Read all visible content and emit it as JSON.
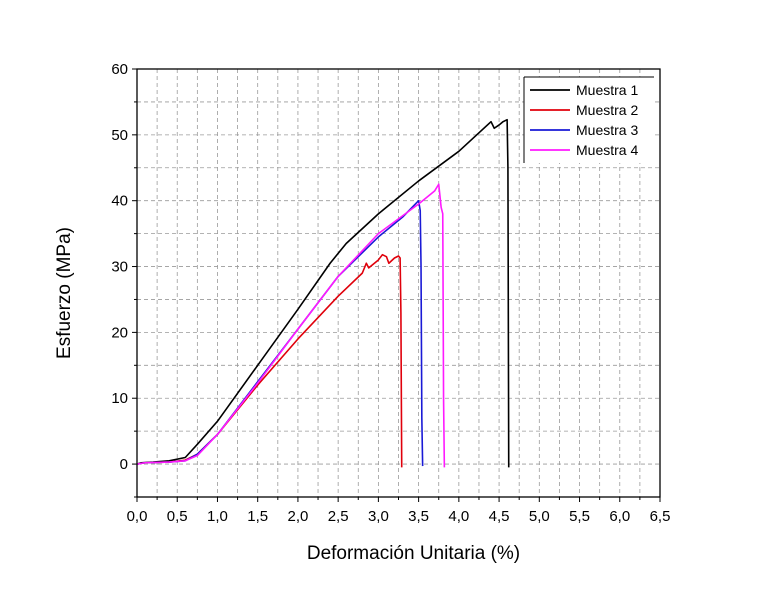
{
  "chart_data": {
    "type": "line",
    "title": "",
    "xlabel": "Deformación Unitaria (%)",
    "ylabel": "Esfuerzo (MPa)",
    "xlim": [
      0,
      6.5
    ],
    "ylim": [
      -5,
      60
    ],
    "x_ticks": [
      0,
      0.5,
      1.0,
      1.5,
      2.0,
      2.5,
      3.0,
      3.5,
      4.0,
      4.5,
      5.0,
      5.5,
      6.0,
      6.5
    ],
    "x_tick_labels": [
      "0,0",
      "0,5",
      "1,0",
      "1,5",
      "2,0",
      "2,5",
      "3,0",
      "3,5",
      "4,0",
      "4,5",
      "5,0",
      "5,5",
      "6,0",
      "6,5"
    ],
    "y_ticks": [
      0,
      10,
      20,
      30,
      40,
      50,
      60
    ],
    "y_tick_labels": [
      "0",
      "10",
      "20",
      "30",
      "40",
      "50",
      "60"
    ],
    "grid": true,
    "legend_position": "top-right",
    "series": [
      {
        "name": "Muestra 1",
        "color": "#000000",
        "points": [
          [
            0,
            0
          ],
          [
            0.05,
            0.2
          ],
          [
            0.2,
            0.3
          ],
          [
            0.4,
            0.5
          ],
          [
            0.6,
            1.0
          ],
          [
            0.75,
            3.0
          ],
          [
            1.0,
            6.5
          ],
          [
            1.5,
            15.0
          ],
          [
            2.0,
            23.5
          ],
          [
            2.4,
            30.5
          ],
          [
            2.6,
            33.5
          ],
          [
            3.0,
            38.0
          ],
          [
            3.5,
            43.0
          ],
          [
            4.0,
            47.5
          ],
          [
            4.4,
            52.0
          ],
          [
            4.44,
            51.0
          ],
          [
            4.5,
            51.5
          ],
          [
            4.55,
            52.0
          ],
          [
            4.6,
            52.3
          ],
          [
            4.61,
            45.0
          ],
          [
            4.62,
            -0.5
          ]
        ]
      },
      {
        "name": "Muestra 2",
        "color": "#e0000b",
        "points": [
          [
            0,
            0
          ],
          [
            0.1,
            0.2
          ],
          [
            0.4,
            0.3
          ],
          [
            0.6,
            0.6
          ],
          [
            0.75,
            1.5
          ],
          [
            1.0,
            4.5
          ],
          [
            1.5,
            12.0
          ],
          [
            2.0,
            19.0
          ],
          [
            2.5,
            25.5
          ],
          [
            2.8,
            29.0
          ],
          [
            2.85,
            30.5
          ],
          [
            2.88,
            29.8
          ],
          [
            3.0,
            31.0
          ],
          [
            3.05,
            31.8
          ],
          [
            3.1,
            31.5
          ],
          [
            3.13,
            30.5
          ],
          [
            3.2,
            31.3
          ],
          [
            3.25,
            31.6
          ],
          [
            3.27,
            31.3
          ],
          [
            3.28,
            23.0
          ],
          [
            3.29,
            -0.5
          ]
        ]
      },
      {
        "name": "Muestra 3",
        "color": "#1a1ad6",
        "points": [
          [
            0,
            0
          ],
          [
            0.1,
            0.2
          ],
          [
            0.4,
            0.3
          ],
          [
            0.6,
            0.5
          ],
          [
            0.75,
            1.5
          ],
          [
            1.0,
            4.5
          ],
          [
            1.5,
            12.5
          ],
          [
            2.0,
            20.5
          ],
          [
            2.5,
            28.5
          ],
          [
            3.0,
            34.5
          ],
          [
            3.3,
            37.5
          ],
          [
            3.5,
            40.0
          ],
          [
            3.52,
            38.5
          ],
          [
            3.53,
            30.0
          ],
          [
            3.54,
            7.0
          ],
          [
            3.55,
            -0.3
          ]
        ]
      },
      {
        "name": "Muestra 4",
        "color": "#ff1aff",
        "points": [
          [
            0,
            0
          ],
          [
            0.1,
            0.2
          ],
          [
            0.4,
            0.3
          ],
          [
            0.6,
            0.5
          ],
          [
            0.75,
            1.3
          ],
          [
            1.0,
            4.5
          ],
          [
            1.5,
            12.3
          ],
          [
            2.0,
            20.5
          ],
          [
            2.5,
            28.5
          ],
          [
            3.0,
            35.0
          ],
          [
            3.5,
            39.5
          ],
          [
            3.7,
            41.5
          ],
          [
            3.75,
            42.5
          ],
          [
            3.78,
            39.0
          ],
          [
            3.8,
            38.0
          ],
          [
            3.81,
            10.0
          ],
          [
            3.82,
            -0.5
          ]
        ]
      }
    ]
  }
}
